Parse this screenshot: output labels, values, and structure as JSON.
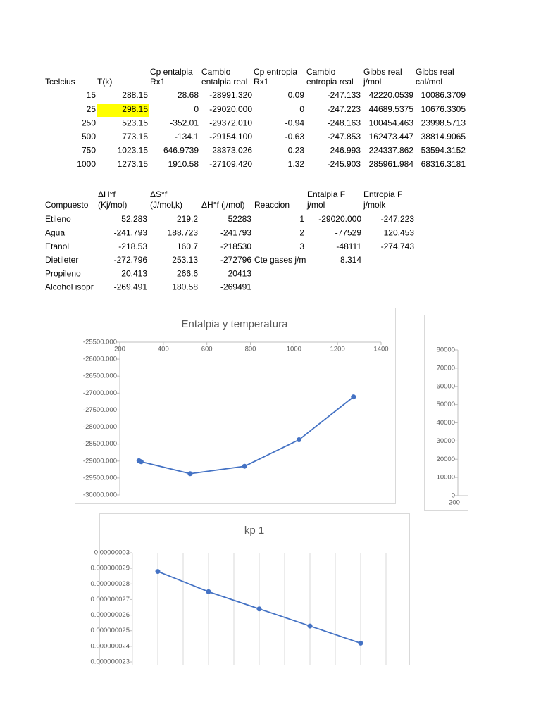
{
  "table1": {
    "headers": [
      [
        "Tcelcius"
      ],
      [
        "T(k)"
      ],
      [
        "Cp entalpia",
        "Rx1"
      ],
      [
        "Cambio",
        "entalpia real"
      ],
      [
        "Cp entropia",
        "Rx1"
      ],
      [
        "Cambio",
        "entropia real"
      ],
      [
        "Gibbs real",
        "j/mol"
      ],
      [
        "Gibbs real",
        "cal/mol"
      ]
    ],
    "rows": [
      [
        "15",
        "288.15",
        "28.68",
        "-28991.320",
        "0.09",
        "-247.133",
        "42220.0539",
        "10086.3709"
      ],
      [
        "25",
        "298.15",
        "0",
        "-29020.000",
        "0",
        "-247.223",
        "44689.5375",
        "10676.3305"
      ],
      [
        "250",
        "523.15",
        "-352.01",
        "-29372.010",
        "-0.94",
        "-248.163",
        "100454.463",
        "23998.5713"
      ],
      [
        "500",
        "773.15",
        "-134.1",
        "-29154.100",
        "-0.63",
        "-247.853",
        "162473.447",
        "38814.9065"
      ],
      [
        "750",
        "1023.15",
        "646.9739",
        "-28373.026",
        "0.23",
        "-246.993",
        "224337.862",
        "53594.3152"
      ],
      [
        "1000",
        "1273.15",
        "1910.58",
        "-27109.420",
        "1.32",
        "-245.903",
        "285961.984",
        "68316.3181"
      ]
    ]
  },
  "table2": {
    "headers": [
      [
        "Compuesto"
      ],
      [
        "ΔH°f",
        "(Kj/mol)"
      ],
      [
        "ΔS°f",
        "(J/mol,k)"
      ],
      [
        "ΔH°f (j/mol)"
      ],
      [
        "Reaccion"
      ],
      [
        "Entalpia F",
        "j/mol"
      ],
      [
        "Entropia F",
        "j/molk"
      ]
    ],
    "rows": [
      [
        "Etileno",
        "52.283",
        "219.2",
        "52283",
        "1",
        "-29020.000",
        "-247.223"
      ],
      [
        "Agua",
        "-241.793",
        "188.723",
        "-241793",
        "2",
        "-77529",
        "120.453"
      ],
      [
        "Etanol",
        "-218.53",
        "160.7",
        "-218530",
        "3",
        "-48111",
        "-274.743"
      ],
      [
        "Dietileter",
        "-272.796",
        "253.13",
        "-272796",
        "Cte gases j/m",
        "8.314"
      ],
      [
        "Propileno",
        "20.413",
        "266.6",
        "20413"
      ],
      [
        "Alcohol isopr",
        "-269.491",
        "180.58",
        "-269491"
      ]
    ]
  },
  "chart_data": [
    {
      "type": "line",
      "title": "Entalpia y temperatura",
      "color": "#4472c4",
      "x": [
        288.15,
        298.15,
        523.15,
        773.15,
        1023.15,
        1273.15
      ],
      "values": [
        -28991.32,
        -29020,
        -29372.01,
        -29154.1,
        -28373.026,
        -27109.42
      ],
      "xlim": [
        200,
        1400
      ],
      "xticks": [
        200,
        400,
        600,
        800,
        1000,
        1200,
        1400
      ],
      "ylim": [
        -30000,
        -25500
      ],
      "yticks": [
        {
          "value": -25500,
          "label": "-25500.000"
        },
        {
          "value": -26000,
          "label": "-26000.000"
        },
        {
          "value": -26500,
          "label": "-26500.000"
        },
        {
          "value": -27000,
          "label": "-27000.000"
        },
        {
          "value": -27500,
          "label": "-27500.000"
        },
        {
          "value": -28000,
          "label": "-28000.000"
        },
        {
          "value": -28500,
          "label": "-28500.000"
        },
        {
          "value": -29000,
          "label": "-29000.000"
        },
        {
          "value": -29500,
          "label": "-29500.000"
        },
        {
          "value": -30000,
          "label": "-30000.000"
        }
      ]
    },
    {
      "type": "axes",
      "ylim": [
        0,
        80000
      ],
      "yticks": [
        0,
        10000,
        20000,
        30000,
        40000,
        50000,
        60000,
        70000,
        80000
      ],
      "xticks": [
        200
      ]
    },
    {
      "type": "line",
      "title": "kp 1",
      "color": "#4472c4",
      "grid": true,
      "categories": [
        null,
        null,
        null,
        null,
        null
      ],
      "values": [
        2.88e-08,
        2.75e-08,
        2.64e-08,
        2.53e-08,
        2.42e-08
      ],
      "ylim": [
        2.3e-08,
        3e-08
      ],
      "yticks": [
        {
          "value": 2.3e-08,
          "label": "0.000000023"
        },
        {
          "value": 2.4e-08,
          "label": "0.000000024"
        },
        {
          "value": 2.5e-08,
          "label": "0.000000025"
        },
        {
          "value": 2.6e-08,
          "label": "0.000000026"
        },
        {
          "value": 2.7e-08,
          "label": "0.000000027"
        },
        {
          "value": 2.8e-08,
          "label": "0.000000028"
        },
        {
          "value": 2.9e-08,
          "label": "0.000000029"
        },
        {
          "value": 3e-08,
          "label": "0.00000003"
        }
      ]
    }
  ]
}
